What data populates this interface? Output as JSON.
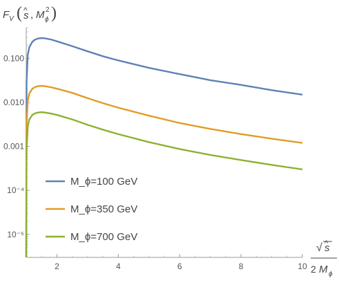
{
  "chart_data": {
    "type": "line",
    "y_scale": "log",
    "ylabel": "F_V(ŝ, M_ϕ²)",
    "xlabel": "√ŝ / 2 M_ϕ",
    "xlim": [
      1.0,
      10.0
    ],
    "ylim": [
      3e-06,
      0.5
    ],
    "x_ticks": [
      2,
      4,
      6,
      8,
      10
    ],
    "x_tick_labels": [
      "2",
      "4",
      "6",
      "8",
      "10"
    ],
    "y_ticks": [
      1e-05,
      0.0001,
      0.001,
      0.01,
      0.1
    ],
    "y_tick_labels": [
      "10⁻⁵",
      "10⁻⁴",
      "0.001",
      "0.010",
      "0.100"
    ],
    "grid": false,
    "legend_position": "bottom-left",
    "x": [
      1.0,
      1.01,
      1.05,
      1.1,
      1.2,
      1.3,
      1.4,
      1.5,
      1.6,
      1.8,
      2.0,
      2.5,
      3.0,
      3.5,
      4.0,
      5.0,
      6.0,
      7.0,
      8.0,
      9.0,
      10.0
    ],
    "series": [
      {
        "name": "M_ϕ=100 GeV",
        "color": "#5E81B5",
        "values": [
          3e-06,
          0.03,
          0.12,
          0.18,
          0.24,
          0.27,
          0.285,
          0.29,
          0.287,
          0.27,
          0.245,
          0.19,
          0.145,
          0.112,
          0.09,
          0.061,
          0.044,
          0.032,
          0.025,
          0.019,
          0.015
        ]
      },
      {
        "name": "M_ϕ=350 GeV",
        "color": "#E19C24",
        "values": [
          3e-06,
          0.003,
          0.011,
          0.016,
          0.0205,
          0.0225,
          0.0235,
          0.0238,
          0.0235,
          0.0222,
          0.0205,
          0.0165,
          0.0125,
          0.0096,
          0.0076,
          0.005,
          0.0034,
          0.0025,
          0.0019,
          0.0015,
          0.0012
        ]
      },
      {
        "name": "M_ϕ=700 GeV",
        "color": "#8FB032",
        "values": [
          3e-06,
          0.0008,
          0.0028,
          0.0041,
          0.0052,
          0.0057,
          0.0059,
          0.006,
          0.0059,
          0.0056,
          0.0052,
          0.0041,
          0.0031,
          0.0024,
          0.0019,
          0.00125,
          0.00087,
          0.00064,
          0.00049,
          0.00038,
          0.0003
        ]
      }
    ]
  }
}
